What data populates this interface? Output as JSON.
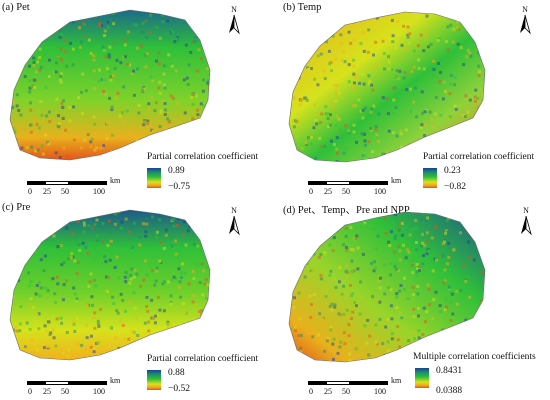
{
  "panels": [
    {
      "label": "(a) Pet",
      "legend_title": "Partial correlation coefficient",
      "max": "0.89",
      "min": "−0.75"
    },
    {
      "label": "(b) Temp",
      "legend_title": "Partial correlation coefficient",
      "max": "0.23",
      "min": "−0.82"
    },
    {
      "label": "(c) Pre",
      "legend_title": "Partial correlation coefficient",
      "max": "0.88",
      "min": "−0.52"
    },
    {
      "label": "(d) Pet、Temp、Pre and NPP",
      "legend_title": "Multiple correlation coefficients",
      "max": "0.8431",
      "min": "0.0388"
    }
  ],
  "north_label": "N",
  "scale": {
    "unit": "km",
    "ticks": [
      "0",
      "25",
      "50",
      "100"
    ]
  },
  "colors": {
    "high": "#1d3f9a",
    "mid_high": "#1c8a6e",
    "mid": "#2fbf3a",
    "mid_low": "#d6e21c",
    "low_mid": "#f2b01d",
    "low": "#e4551c"
  }
}
